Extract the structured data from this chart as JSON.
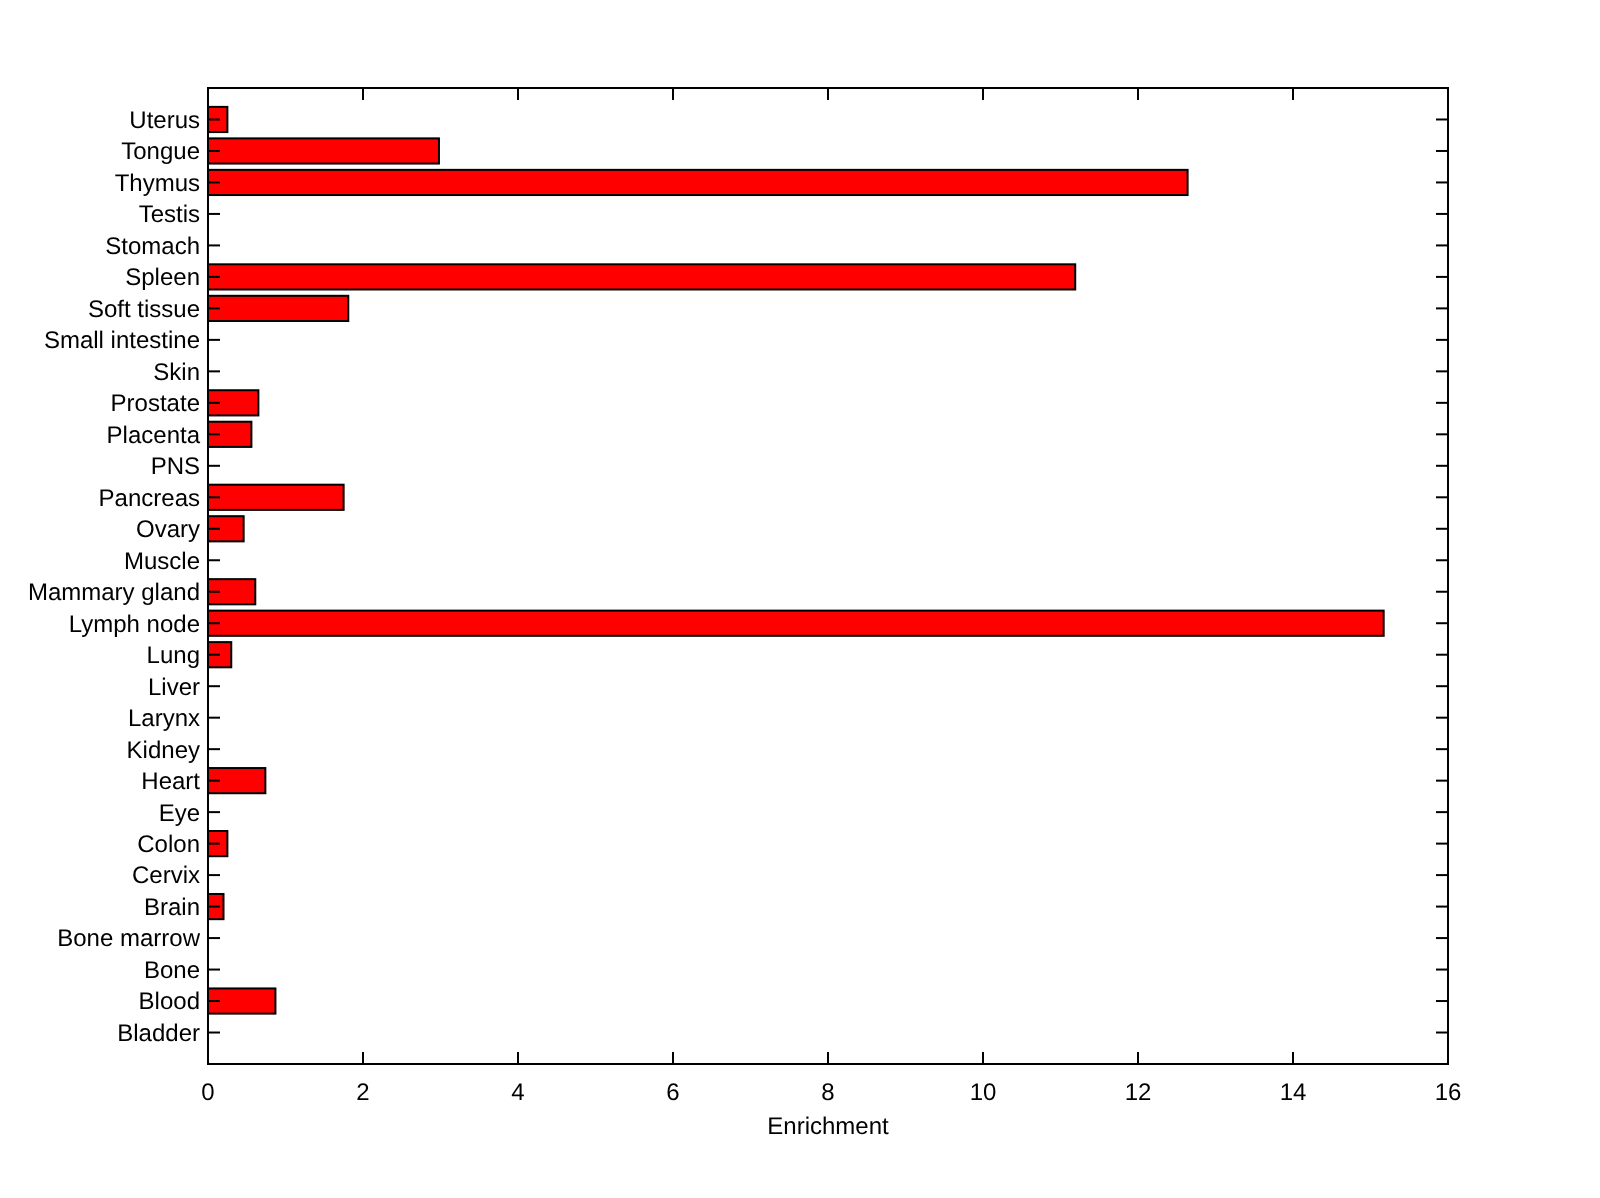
{
  "chart_data": {
    "type": "bar",
    "orientation": "horizontal",
    "xlabel": "Enrichment",
    "categories": [
      "Uterus",
      "Tongue",
      "Thymus",
      "Testis",
      "Stomach",
      "Spleen",
      "Soft tissue",
      "Small intestine",
      "Skin",
      "Prostate",
      "Placenta",
      "PNS",
      "Pancreas",
      "Ovary",
      "Muscle",
      "Mammary gland",
      "Lymph node",
      "Lung",
      "Liver",
      "Larynx",
      "Kidney",
      "Heart",
      "Eye",
      "Colon",
      "Cervix",
      "Brain",
      "Bone marrow",
      "Bone",
      "Blood",
      "Bladder"
    ],
    "values": [
      0.25,
      2.98,
      12.64,
      0,
      0,
      11.19,
      1.81,
      0,
      0,
      0.65,
      0.56,
      0,
      1.75,
      0.46,
      0,
      0.61,
      15.17,
      0.3,
      0,
      0,
      0,
      0.74,
      0,
      0.25,
      0,
      0.2,
      0,
      0,
      0.87,
      0
    ],
    "color": "#ff0000",
    "xlim": [
      0,
      16
    ],
    "xticks": [
      0,
      2,
      4,
      6,
      8,
      10,
      12,
      14,
      16
    ],
    "grid": false
  }
}
